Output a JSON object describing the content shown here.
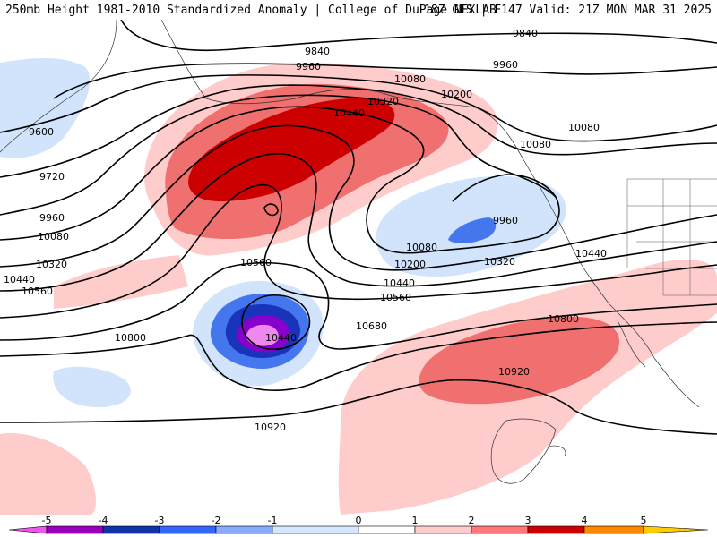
{
  "header": {
    "title_left": "250mb Height 1981-2010 Standardized Anomaly | College of DuPage NEXLAB",
    "title_right": "18Z GFS | F147 Valid: 21Z MON MAR 31 2025"
  },
  "map": {
    "contour_labels": [
      {
        "id": "c9840a",
        "text": "9840"
      },
      {
        "id": "c9840b",
        "text": "9840"
      },
      {
        "id": "c9960a",
        "text": "9960"
      },
      {
        "id": "c9960b",
        "text": "9960"
      },
      {
        "id": "c9960c",
        "text": "9960"
      },
      {
        "id": "c9960d",
        "text": "9960"
      },
      {
        "id": "c9600",
        "text": "9600"
      },
      {
        "id": "c9720",
        "text": "9720"
      },
      {
        "id": "c10080a",
        "text": "10080"
      },
      {
        "id": "c10080b",
        "text": "10080"
      },
      {
        "id": "c10080c",
        "text": "10080"
      },
      {
        "id": "c10080d",
        "text": "10080"
      },
      {
        "id": "c10080e",
        "text": "10080"
      },
      {
        "id": "c10200a",
        "text": "10200"
      },
      {
        "id": "c10200b",
        "text": "10200"
      },
      {
        "id": "c10320a",
        "text": "10320"
      },
      {
        "id": "c10320b",
        "text": "10320"
      },
      {
        "id": "c10320c",
        "text": "10320"
      },
      {
        "id": "c10440a",
        "text": "10440"
      },
      {
        "id": "c10440b",
        "text": "10440"
      },
      {
        "id": "c10440c",
        "text": "10440"
      },
      {
        "id": "c10440d",
        "text": "10440"
      },
      {
        "id": "c10440e",
        "text": "10440"
      },
      {
        "id": "c10560a",
        "text": "10560"
      },
      {
        "id": "c10560b",
        "text": "10560"
      },
      {
        "id": "c10560c",
        "text": "10560"
      },
      {
        "id": "c10680",
        "text": "10680"
      },
      {
        "id": "c10800a",
        "text": "10800"
      },
      {
        "id": "c10800b",
        "text": "10800"
      },
      {
        "id": "c10920a",
        "text": "10920"
      },
      {
        "id": "c10920b",
        "text": "10920"
      }
    ]
  },
  "colorbar": {
    "ticks": [
      "-5",
      "-4",
      "-3",
      "-2",
      "-1",
      "0",
      "1",
      "2",
      "3",
      "4",
      "5"
    ],
    "colors": [
      "#ee55ee",
      "#9900bb",
      "#1133aa",
      "#3366ff",
      "#88aaff",
      "#d6e6ff",
      "#ffffff",
      "#ffcccc",
      "#ff7777",
      "#cc0000",
      "#ff8800",
      "#ffcc00"
    ]
  },
  "colors": {
    "anom_pos_1": "#ffcccc",
    "anom_pos_2": "#f07070",
    "anom_pos_3": "#cc0000",
    "anom_neg_1": "#d2e4fb",
    "anom_neg_2": "#4477ee",
    "anom_neg_3": "#1a33bb",
    "anom_neg_4": "#8800cc",
    "anom_neg_5": "#ee88ee"
  }
}
